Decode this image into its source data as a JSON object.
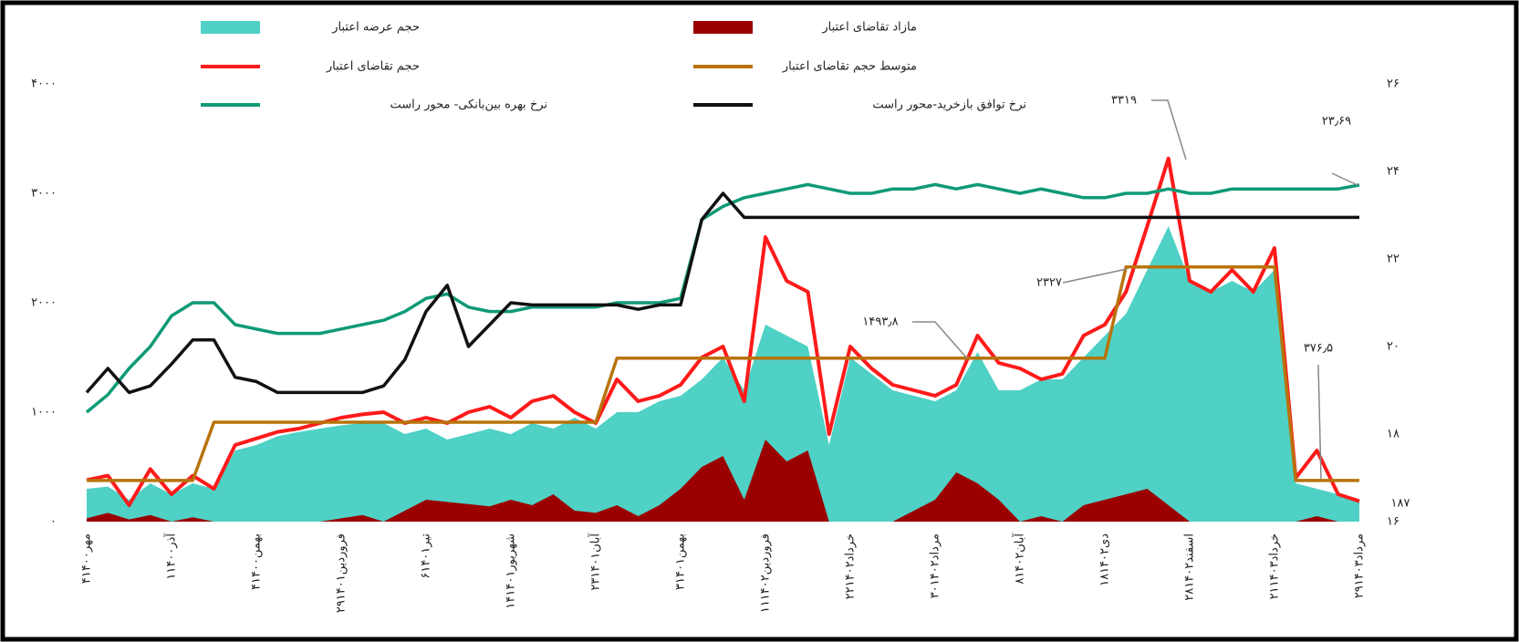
{
  "chart_data": {
    "type": "combo",
    "categories": [
      "۴مهر۱۴۰۰",
      null,
      null,
      null,
      "۱آذر۱۴۰۰",
      null,
      null,
      null,
      "۴بهمن۱۴۰۰",
      null,
      null,
      null,
      "۲۹فروردین۱۴۰۱",
      null,
      null,
      null,
      "۶تیر۱۴۰۱",
      null,
      null,
      null,
      "۱۴شهریور۱۴۰۱",
      null,
      null,
      null,
      "۲۳آبان۱۴۰۱",
      null,
      null,
      null,
      "۳بهمن۱۴۰۱",
      null,
      null,
      null,
      "۱۱فروردین۱۴۰۲",
      null,
      null,
      null,
      "۲۲خرداد۱۴۰۲",
      null,
      null,
      null,
      "۳۰مرداد۱۴۰۲",
      null,
      null,
      null,
      "۸آبان۱۴۰۲",
      null,
      null,
      null,
      "۱۸دی۱۴۰۲",
      null,
      null,
      null,
      "۲۸اسفند۱۴۰۲",
      null,
      null,
      null,
      "۲۱خرداد۱۴۰۳",
      null,
      null,
      null,
      "۲۹مرداد۱۴۰۳"
    ],
    "ylim": [
      0,
      4000
    ],
    "yticks": [
      {
        "value": 0,
        "label": "۰"
      },
      {
        "value": 1000,
        "label": "۱۰۰۰"
      },
      {
        "value": 2000,
        "label": "۲۰۰۰"
      },
      {
        "value": 3000,
        "label": "۳۰۰۰"
      },
      {
        "value": 4000,
        "label": "۴۰۰۰"
      }
    ],
    "y2lim": [
      16,
      26
    ],
    "y2ticks": [
      {
        "value": 16,
        "label": "۱۶"
      },
      {
        "value": 18,
        "label": "۱۸"
      },
      {
        "value": 20,
        "label": "۲۰"
      },
      {
        "value": 22,
        "label": "۲۲"
      },
      {
        "value": 24,
        "label": "۲۴"
      },
      {
        "value": 26,
        "label": "۲۶"
      }
    ],
    "series": [
      {
        "name": "حجم عرضه اعتبار",
        "kind": "area",
        "color": "#4fd1c5",
        "values": [
          300,
          320,
          200,
          350,
          250,
          350,
          300,
          650,
          700,
          780,
          820,
          850,
          880,
          900,
          900,
          800,
          850,
          750,
          800,
          850,
          800,
          900,
          850,
          950,
          850,
          1000,
          1000,
          1100,
          1150,
          1300,
          1500,
          1200,
          1800,
          1700,
          1600,
          700,
          1500,
          1350,
          1200,
          1150,
          1100,
          1200,
          1550,
          1200,
          1200,
          1300,
          1300,
          1500,
          1700,
          1900,
          2300,
          2700,
          2200,
          2100,
          2200,
          2100,
          2300,
          350,
          300,
          250,
          187
        ]
      },
      {
        "name": "مازاد تقاضای اعتبار",
        "kind": "area",
        "color": "#9b0000",
        "values": [
          30,
          80,
          20,
          60,
          0,
          40,
          0,
          0,
          0,
          0,
          0,
          0,
          30,
          60,
          0,
          100,
          200,
          180,
          160,
          140,
          200,
          150,
          250,
          100,
          80,
          150,
          50,
          150,
          300,
          500,
          600,
          200,
          750,
          550,
          650,
          0,
          0,
          0,
          0,
          100,
          200,
          450,
          350,
          200,
          0,
          50,
          0,
          150,
          200,
          250,
          300,
          150,
          0,
          0,
          0,
          0,
          0,
          0,
          50,
          0,
          0
        ]
      },
      {
        "name": "حجم تقاضای اعتبار",
        "kind": "line",
        "color": "#ff1a1a",
        "values": [
          380,
          420,
          150,
          480,
          250,
          420,
          300,
          700,
          760,
          820,
          850,
          900,
          950,
          980,
          1000,
          900,
          950,
          900,
          1000,
          1050,
          950,
          1100,
          1150,
          1000,
          900,
          1300,
          1100,
          1150,
          1250,
          1500,
          1600,
          1100,
          2600,
          2200,
          2100,
          800,
          1600,
          1400,
          1250,
          1200,
          1150,
          1250,
          1700,
          1450,
          1400,
          1300,
          1350,
          1700,
          1800,
          2100,
          2700,
          3319,
          2200,
          2100,
          2300,
          2100,
          2500,
          400,
          650,
          250,
          187
        ]
      },
      {
        "name": "متوسط حجم تقاضای اعتبار",
        "kind": "line",
        "color": "#b8730a",
        "values": [
          376.5,
          376.5,
          376.5,
          376.5,
          376.5,
          376.5,
          908,
          908,
          908,
          908,
          908,
          908,
          908,
          908,
          908,
          908,
          908,
          908,
          908,
          908,
          908,
          908,
          908,
          908,
          908,
          1493.8,
          1493.8,
          1493.8,
          1493.8,
          1493.8,
          1493.8,
          1493.8,
          1493.8,
          1493.8,
          1493.8,
          1493.8,
          1493.8,
          1493.8,
          1493.8,
          1493.8,
          1493.8,
          1493.8,
          1493.8,
          1493.8,
          1493.8,
          1493.8,
          1493.8,
          1493.8,
          1493.8,
          2327,
          2327,
          2327,
          2327,
          2327,
          2327,
          2327,
          2327,
          376.5,
          376.5,
          376.5,
          376.5
        ]
      },
      {
        "name": "نرخ بهره بین‌بانکی- محور راست",
        "kind": "line",
        "axis": "y2",
        "color": "#0e9a76",
        "values": [
          18.5,
          18.9,
          19.5,
          20.0,
          20.7,
          21.0,
          21.0,
          20.5,
          20.4,
          20.3,
          20.3,
          20.3,
          20.4,
          20.5,
          20.6,
          20.8,
          21.1,
          21.2,
          20.9,
          20.8,
          20.8,
          20.9,
          20.9,
          20.9,
          20.9,
          21.0,
          21.0,
          21.0,
          21.1,
          22.9,
          23.2,
          23.4,
          23.5,
          23.6,
          23.7,
          23.6,
          23.5,
          23.5,
          23.6,
          23.6,
          23.7,
          23.6,
          23.7,
          23.6,
          23.5,
          23.6,
          23.5,
          23.4,
          23.4,
          23.5,
          23.5,
          23.6,
          23.5,
          23.5,
          23.6,
          23.6,
          23.6,
          23.6,
          23.6,
          23.6,
          23.69
        ]
      },
      {
        "name": "نرخ توافق بازخرید-محور راست",
        "kind": "line",
        "axis": "y2",
        "color": "#111111",
        "values": [
          18.95,
          19.5,
          18.95,
          19.1,
          19.6,
          20.15,
          20.15,
          19.3,
          19.2,
          18.95,
          18.95,
          18.95,
          18.95,
          18.95,
          19.1,
          19.7,
          20.8,
          21.4,
          20.0,
          20.5,
          21.0,
          20.95,
          20.95,
          20.95,
          20.95,
          20.95,
          20.85,
          20.95,
          20.95,
          22.9,
          23.5,
          22.95,
          22.95,
          22.95,
          22.95,
          22.95,
          22.95,
          22.95,
          22.95,
          22.95,
          22.95,
          22.95,
          22.95,
          22.95,
          22.95,
          22.95,
          22.95,
          22.95,
          22.95,
          22.95,
          22.95,
          22.95,
          22.95,
          22.95,
          22.95,
          22.95,
          22.95,
          22.95,
          22.95,
          22.95,
          22.95
        ]
      }
    ],
    "annotations": [
      "۳۳۱۹",
      "۲۳٫۶۹",
      "۲۳۲۷",
      "۱۴۹۳٫۸",
      "۳۷۶٫۵",
      "۱۸۷"
    ]
  }
}
